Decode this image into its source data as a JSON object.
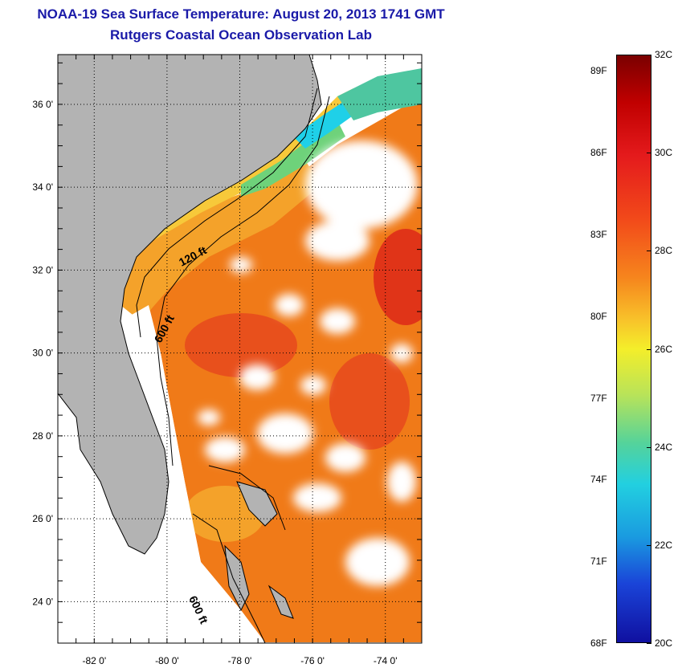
{
  "title": {
    "line1": "NOAA-19 Sea Surface Temperature:  August 20, 2013 1741 GMT",
    "line2": "Rutgers Coastal Ocean Observation Lab"
  },
  "map": {
    "lon_range": [
      -83.0,
      -73.0
    ],
    "lat_range": [
      23.0,
      37.2
    ],
    "lon_ticks": [
      {
        "value": -82,
        "label": "-82 0'"
      },
      {
        "value": -80,
        "label": "-80 0'"
      },
      {
        "value": -78,
        "label": "-78 0'"
      },
      {
        "value": -76,
        "label": "-76 0'"
      },
      {
        "value": -74,
        "label": "-74 0'"
      }
    ],
    "lat_ticks": [
      {
        "value": 24,
        "label": "24 0'"
      },
      {
        "value": 26,
        "label": "26 0'"
      },
      {
        "value": 28,
        "label": "28 0'"
      },
      {
        "value": 30,
        "label": "30 0'"
      },
      {
        "value": 32,
        "label": "32 0'"
      },
      {
        "value": 34,
        "label": "34 0'"
      },
      {
        "value": 36,
        "label": "36 0'"
      }
    ],
    "contour_labels": {
      "c120_north": "120 ft",
      "c600_florida": "600 ft",
      "c600_south": "600 ft"
    },
    "colors": {
      "land": "#b3b3b3",
      "cloud": "#ffffff",
      "warm": "#f07a18",
      "hot": "#e03418",
      "moderate": "#f4a22a",
      "mild": "#f7c93a",
      "cool": "#6ed27a",
      "cold": "#1fd0e8"
    }
  },
  "colorbar": {
    "celsius": [
      "32C",
      "30C",
      "28C",
      "26C",
      "24C",
      "22C",
      "20C"
    ],
    "fahrenheit": [
      "89F",
      "86F",
      "83F",
      "80F",
      "77F",
      "74F",
      "71F",
      "68F"
    ],
    "range_c": [
      20,
      32
    ]
  }
}
